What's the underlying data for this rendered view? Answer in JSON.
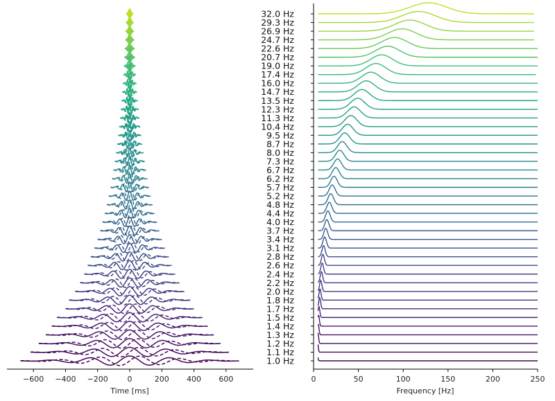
{
  "chart_data": [
    {
      "type": "line",
      "title": "",
      "xlabel": "Time [ms]",
      "ylabel": "",
      "xlim": [
        -700,
        700
      ],
      "xticks": [
        -600,
        -400,
        -200,
        0,
        200,
        400,
        600
      ],
      "grid": false,
      "description_series": "Morlet wavelets (real part solid, imaginary part dashed), one per frequency, stacked vertically from 1.0 Hz (bottom) to 32.0 Hz (top); envelope width shrinks with frequency.",
      "frequencies_hz": [
        1.0,
        1.1,
        1.2,
        1.3,
        1.4,
        1.5,
        1.7,
        1.8,
        2.0,
        2.2,
        2.4,
        2.6,
        2.8,
        3.1,
        3.4,
        3.7,
        4.0,
        4.4,
        4.8,
        5.2,
        5.7,
        6.2,
        6.7,
        7.3,
        8.0,
        8.7,
        9.5,
        10.4,
        11.3,
        12.3,
        13.5,
        14.7,
        16.0,
        17.4,
        19.0,
        20.7,
        22.6,
        24.7,
        26.9,
        29.3,
        32.0
      ],
      "half_span_ms_at_1hz": 680
    },
    {
      "type": "line",
      "title": "",
      "xlabel": "Frequency [Hz]",
      "ylabel": "",
      "xlim": [
        0,
        250
      ],
      "xticks": [
        0,
        50,
        100,
        150,
        200,
        250
      ],
      "grid": false,
      "y_tick_labels": [
        "1.0 Hz",
        "1.1 Hz",
        "1.2 Hz",
        "1.3 Hz",
        "1.4 Hz",
        "1.5 Hz",
        "1.7 Hz",
        "1.8 Hz",
        "2.0 Hz",
        "2.2 Hz",
        "2.4 Hz",
        "2.6 Hz",
        "2.8 Hz",
        "3.1 Hz",
        "3.4 Hz",
        "3.7 Hz",
        "4.0 Hz",
        "4.4 Hz",
        "4.8 Hz",
        "5.2 Hz",
        "5.7 Hz",
        "6.2 Hz",
        "6.7 Hz",
        "7.3 Hz",
        "8.0 Hz",
        "8.7 Hz",
        "9.5 Hz",
        "10.4 Hz",
        "11.3 Hz",
        "12.3 Hz",
        "13.5 Hz",
        "14.7 Hz",
        "16.0 Hz",
        "17.4 Hz",
        "19.0 Hz",
        "20.7 Hz",
        "22.6 Hz",
        "24.7 Hz",
        "26.9 Hz",
        "29.3 Hz",
        "32.0 Hz"
      ],
      "peak_frequency_per_row_hz": [
        4,
        4.4,
        4.8,
        5.2,
        5.6,
        6,
        6.8,
        7.2,
        8,
        8.8,
        9.6,
        10.4,
        11.2,
        12.4,
        13.6,
        14.8,
        16,
        17.6,
        19.2,
        20.8,
        22.8,
        24.8,
        26.8,
        29.2,
        32,
        34.8,
        38,
        41.6,
        45.2,
        49.2,
        54,
        58.8,
        64,
        69.6,
        76,
        82.8,
        90.4,
        98.8,
        107.6,
        117.2,
        128
      ],
      "peak_height_relative": 1.0
    }
  ],
  "colors": {
    "colormap": "viridis",
    "low": "#440154",
    "mid": "#21918c",
    "high": "#bddf26"
  }
}
